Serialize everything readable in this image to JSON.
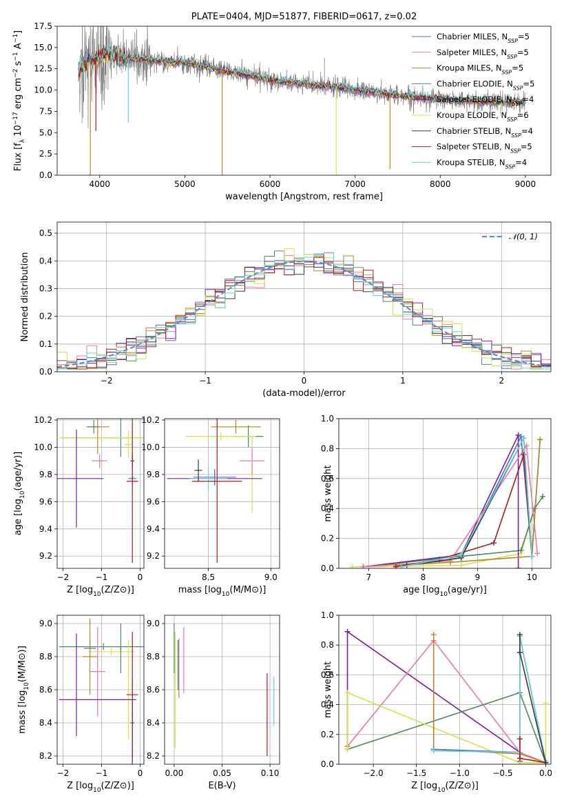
{
  "colors": {
    "chabrier_miles": "#4f6fd1",
    "salpeter_miles": "#e87aa6",
    "kroupa_miles": "#b8862a",
    "chabrier_elodie": "#4e8a5a",
    "salpeter_elodie": "#7a1fa0",
    "kroupa_elodie": "#d2e34a",
    "chabrier_stelib": "#3a3a3a",
    "salpeter_stelib": "#b01818",
    "kroupa_stelib": "#6ad0d4",
    "data": "#808080",
    "normal": "#5b8bd6"
  },
  "chart_data": [
    {
      "type": "line",
      "title": "PLATE=0404, MJD=51877, FIBERID=0617, z=0.02",
      "xlabel": "wavelength [Angstrom, rest frame]",
      "ylabel": "Flux [f_λ 10^-17 erg cm^-2 s^-1 A^-1]",
      "xlim": [
        3500,
        9300
      ],
      "ylim": [
        0,
        17.5
      ],
      "xticks": [
        "4000",
        "5000",
        "6000",
        "7000",
        "8000",
        "9000"
      ],
      "yticks": [
        "0.0",
        "2.5",
        "5.0",
        "7.5",
        "10.0",
        "12.5",
        "15.0",
        "17.5"
      ],
      "legend_position": "top-right",
      "legend": [
        {
          "label": "Chabrier MILES, N",
          "sub": "SSP",
          "suffix": "=5",
          "color": "chabrier_miles"
        },
        {
          "label": "Salpeter MILES, N",
          "sub": "SSP",
          "suffix": "=5",
          "color": "salpeter_miles"
        },
        {
          "label": "Kroupa MILES, N",
          "sub": "SSP",
          "suffix": "=5",
          "color": "kroupa_miles"
        },
        {
          "label": "Chabrier ELODIE, N",
          "sub": "SSP",
          "suffix": "=5",
          "color": "chabrier_elodie"
        },
        {
          "label": "Salpeter ELODIE, N",
          "sub": "SSP",
          "suffix": "=4",
          "color": "salpeter_elodie"
        },
        {
          "label": "Kroupa ELODIE, N",
          "sub": "SSP",
          "suffix": "=6",
          "color": "kroupa_elodie"
        },
        {
          "label": "Chabrier STELIB, N",
          "sub": "SSP",
          "suffix": "=4",
          "color": "chabrier_stelib"
        },
        {
          "label": "Salpeter STELIB, N",
          "sub": "SSP",
          "suffix": "=5",
          "color": "salpeter_stelib"
        },
        {
          "label": "Kroupa STELIB, N",
          "sub": "SSP",
          "suffix": "=4",
          "color": "kroupa_stelib"
        }
      ],
      "model_shape": {
        "x": [
          3700,
          3800,
          3900,
          4000,
          4100,
          4200,
          4300,
          4400,
          4600,
          4800,
          5000,
          5200,
          5400,
          5600,
          5800,
          6000,
          6200,
          6400,
          6600,
          6800,
          7000,
          7200,
          7400,
          7600,
          7800,
          8000,
          8200,
          8400,
          8600,
          8800,
          9000
        ],
        "y": [
          11.0,
          13.0,
          13.5,
          14.0,
          14.2,
          14.0,
          13.7,
          13.6,
          13.5,
          13.3,
          13.2,
          12.8,
          12.4,
          12.0,
          11.6,
          11.2,
          10.9,
          10.7,
          10.5,
          10.3,
          10.0,
          9.8,
          9.5,
          9.3,
          9.1,
          8.9,
          8.8,
          8.7,
          8.6,
          8.6,
          8.6
        ]
      },
      "spikes": [
        {
          "x": 3890,
          "y": 0,
          "color": "kroupa_miles"
        },
        {
          "x": 3955,
          "y": 5.2,
          "color": "salpeter_stelib"
        },
        {
          "x": 4335,
          "y": 6.2,
          "color": "kroupa_stelib"
        },
        {
          "x": 5438,
          "y": 0,
          "color": "kroupa_miles"
        },
        {
          "x": 6778,
          "y": 0,
          "color": "kroupa_elodie"
        },
        {
          "x": 7410,
          "y": 0.7,
          "color": "kroupa_miles"
        }
      ]
    },
    {
      "type": "histogram",
      "xlabel": "(data-model)/error",
      "ylabel": "Normed distribution",
      "xlim": [
        -2.5,
        2.5
      ],
      "ylim": [
        0,
        0.54
      ],
      "xticks": [
        "−2",
        "−1",
        "0",
        "1",
        "2"
      ],
      "yticks": [
        "0.0",
        "0.1",
        "0.2",
        "0.3",
        "0.4",
        "0.5"
      ],
      "legend": [
        {
          "label": "𝒩(0, 1)",
          "color": "normal",
          "style": "dashed"
        }
      ],
      "legend_position": "top-right"
    },
    {
      "type": "errorbar",
      "xlabel": "Z [log10(Z/Z⊙)]",
      "ylabel": "age [log10(age/yr)]",
      "xlim": [
        -2.15,
        0.1
      ],
      "ylim": [
        9.11,
        10.21
      ],
      "xticks": [
        "−2",
        "−1",
        "0"
      ],
      "yticks": [
        "9.2",
        "9.4",
        "9.6",
        "9.8",
        "10.0",
        "10.2"
      ],
      "points": [
        {
          "x": -1.1,
          "xerr": 0.3,
          "y": 10.15,
          "yerr": 0.2,
          "color": "kroupa_miles"
        },
        {
          "x": -1.2,
          "xerr": 0.15,
          "y": 10.15,
          "yerr": 0.05,
          "color": "chabrier_elodie"
        },
        {
          "x": -0.5,
          "xerr": 1.55,
          "y": 10.07,
          "yerr": 0.14,
          "color": "chabrier_elodie"
        },
        {
          "x": -1.0,
          "xerr": 1.1,
          "y": 10.07,
          "yerr": 0.02,
          "color": "kroupa_elodie"
        },
        {
          "x": -0.3,
          "xerr": 0.1,
          "y": 10.02,
          "yerr": 0.1,
          "color": "kroupa_elodie"
        },
        {
          "x": -1.05,
          "xerr": 0.2,
          "y": 9.9,
          "yerr": 0.05,
          "color": "salpeter_miles"
        },
        {
          "x": -1.65,
          "xerr": 0.7,
          "y": 9.77,
          "yerr": 0.36,
          "color": "salpeter_elodie"
        },
        {
          "x": -0.2,
          "xerr": 0.1,
          "y": 9.77,
          "yerr": 0.05,
          "color": "chabrier_miles"
        },
        {
          "x": -0.2,
          "xerr": 0.05,
          "y": 9.78,
          "yerr": 0.05,
          "color": "kroupa_stelib"
        },
        {
          "x": -0.2,
          "xerr": 0.05,
          "y": 9.9,
          "yerr": 0.05,
          "color": "chabrier_stelib"
        },
        {
          "x": -0.2,
          "xerr": 0.15,
          "y": 9.75,
          "yerr": 0.6,
          "color": "salpeter_stelib"
        }
      ]
    },
    {
      "type": "errorbar",
      "xlabel": "mass [log10(M/M⊙)]",
      "ylabel": "",
      "xlim": [
        8.15,
        9.07
      ],
      "ylim": [
        9.11,
        10.21
      ],
      "xticks": [
        "8.5",
        "9.0"
      ],
      "yticks": [
        "9.2",
        "9.4",
        "9.6",
        "9.8",
        "10.0",
        "10.2"
      ],
      "points": [
        {
          "x": 8.72,
          "xerr": 0.2,
          "y": 10.15,
          "yerr": 0.05,
          "color": "kroupa_miles"
        },
        {
          "x": 8.82,
          "xerr": 0.12,
          "y": 10.08,
          "yerr": 0.08,
          "color": "chabrier_elodie"
        },
        {
          "x": 8.6,
          "xerr": 0.28,
          "y": 10.08,
          "yerr": 0.03,
          "color": "kroupa_elodie"
        },
        {
          "x": 8.85,
          "xerr": 0.03,
          "y": 9.8,
          "yerr": 0.28,
          "color": "kroupa_elodie"
        },
        {
          "x": 8.85,
          "xerr": 0.1,
          "y": 9.9,
          "yerr": 0.1,
          "color": "salpeter_miles"
        },
        {
          "x": 8.55,
          "xerr": 0.38,
          "y": 9.77,
          "yerr": 0.05,
          "color": "salpeter_elodie"
        },
        {
          "x": 8.55,
          "xerr": 0.17,
          "y": 9.78,
          "yerr": 0.06,
          "color": "chabrier_miles"
        },
        {
          "x": 8.5,
          "xerr": 0.15,
          "y": 9.77,
          "yerr": 0.09,
          "color": "kroupa_stelib"
        },
        {
          "x": 8.42,
          "xerr": 0.03,
          "y": 9.83,
          "yerr": 0.08,
          "color": "chabrier_stelib"
        },
        {
          "x": 8.57,
          "xerr": 0.2,
          "y": 9.75,
          "yerr": 0.6,
          "color": "salpeter_stelib"
        }
      ]
    },
    {
      "type": "line",
      "xlabel": "age [log10(age/yr)]",
      "ylabel": "mass weight",
      "xlim": [
        6.45,
        10.35
      ],
      "ylim": [
        0,
        1.0
      ],
      "xticks": [
        "7",
        "8",
        "9",
        "10"
      ],
      "yticks": [
        "0.0",
        "0.2",
        "0.4",
        "0.6",
        "0.8",
        "1.0"
      ],
      "series": [
        {
          "color": "kroupa_elodie",
          "x": [
            6.7,
            8.7,
            9.8,
            10.05,
            10.2
          ],
          "y": [
            0.01,
            0.02,
            0.1,
            0.4,
            0.48
          ]
        },
        {
          "color": "chabrier_elodie",
          "x": [
            6.9,
            8.7,
            9.8,
            10.05,
            10.2
          ],
          "y": [
            0.01,
            0.08,
            0.12,
            0.4,
            0.48
          ]
        },
        {
          "color": "salpeter_elodie",
          "x": [
            6.9,
            8.7,
            9.75,
            9.75
          ],
          "y": [
            0.01,
            0.09,
            0.89,
            0.0
          ]
        },
        {
          "color": "salpeter_miles",
          "x": [
            6.9,
            8.5,
            9.9,
            10.1
          ],
          "y": [
            0.01,
            0.05,
            0.82,
            0.1
          ]
        },
        {
          "color": "chabrier_miles",
          "x": [
            7.5,
            8.7,
            9.8,
            10.0,
            10.15
          ],
          "y": [
            0.01,
            0.07,
            0.88,
            0.08,
            0.86
          ]
        },
        {
          "color": "kroupa_miles",
          "x": [
            7.5,
            8.5,
            10.0,
            10.15
          ],
          "y": [
            0.02,
            0.04,
            0.08,
            0.86
          ]
        },
        {
          "color": "salpeter_stelib",
          "x": [
            7.5,
            8.3,
            9.3,
            9.85,
            10.0
          ],
          "y": [
            0.01,
            0.06,
            0.17,
            0.76,
            0.08
          ]
        },
        {
          "color": "chabrier_stelib",
          "x": [
            7.7,
            8.7,
            9.85,
            10.0
          ],
          "y": [
            0.02,
            0.07,
            0.87,
            0.08
          ]
        },
        {
          "color": "kroupa_stelib",
          "x": [
            7.6,
            8.7,
            9.85,
            10.0
          ],
          "y": [
            0.01,
            0.09,
            0.87,
            0.08
          ]
        }
      ]
    },
    {
      "type": "errorbar",
      "xlabel": "Z [log10(Z/Z⊙)]",
      "ylabel": "mass [log10(M/M⊙)]",
      "xlim": [
        -2.15,
        0.1
      ],
      "ylim": [
        8.15,
        9.05
      ],
      "xticks": [
        "−2",
        "−1",
        "0"
      ],
      "yticks": [
        "8.2",
        "8.4",
        "8.6",
        "8.8",
        "9.0"
      ],
      "points": [
        {
          "x": -0.95,
          "xerr": 1.15,
          "y": 8.86,
          "yerr": 0.02,
          "color": "chabrier_elodie"
        },
        {
          "x": -1.3,
          "xerr": 0.15,
          "y": 8.85,
          "yerr": 0.05,
          "color": "chabrier_miles"
        },
        {
          "x": -0.75,
          "xerr": 0.6,
          "y": 8.83,
          "yerr": 0.02,
          "color": "kroupa_elodie"
        },
        {
          "x": -1.3,
          "xerr": 0.2,
          "y": 8.8,
          "yerr": 0.23,
          "color": "kroupa_miles"
        },
        {
          "x": -1.1,
          "xerr": 0.2,
          "y": 8.71,
          "yerr": 0.27,
          "color": "salpeter_miles"
        },
        {
          "x": -0.5,
          "xerr": 0.02,
          "y": 8.85,
          "yerr": 0.15,
          "color": "chabrier_elodie"
        },
        {
          "x": -0.3,
          "xerr": 0.02,
          "y": 8.6,
          "yerr": 0.3,
          "color": "kroupa_elodie"
        },
        {
          "x": -0.2,
          "xerr": 0.05,
          "y": 8.4,
          "yerr": 0.25,
          "color": "chabrier_stelib"
        },
        {
          "x": -0.2,
          "xerr": 0.02,
          "y": 8.45,
          "yerr": 0.22,
          "color": "kroupa_stelib"
        },
        {
          "x": -0.2,
          "xerr": 0.15,
          "y": 8.57,
          "yerr": 0.38,
          "color": "salpeter_stelib"
        },
        {
          "x": -1.1,
          "xerr": 1.0,
          "y": 8.54,
          "yerr": 0.0,
          "color": "salpeter_elodie"
        },
        {
          "x": -1.65,
          "xerr": 0.0,
          "y": 8.63,
          "yerr": 0.31,
          "color": "salpeter_elodie"
        }
      ]
    },
    {
      "type": "errorbar",
      "xlabel": "E(B-V)",
      "ylabel": "",
      "xlim": [
        -0.01,
        0.11
      ],
      "ylim": [
        8.15,
        9.05
      ],
      "xticks": [
        "0.00",
        "0.05",
        "0.10"
      ],
      "yticks": [
        "8.2",
        "8.4",
        "8.6",
        "8.8",
        "9.0"
      ],
      "points": [
        {
          "x": 0.0,
          "xerr": 0.0,
          "y": 8.85,
          "yerr": 0.15,
          "color": "chabrier_elodie"
        },
        {
          "x": 0.001,
          "xerr": 0.0,
          "y": 8.6,
          "yerr": 0.35,
          "color": "kroupa_elodie"
        },
        {
          "x": 0.004,
          "xerr": 0.0,
          "y": 8.75,
          "yerr": 0.15,
          "color": "chabrier_miles"
        },
        {
          "x": 0.005,
          "xerr": 0.0,
          "y": 8.73,
          "yerr": 0.18,
          "color": "kroupa_miles"
        },
        {
          "x": 0.01,
          "xerr": 0.0,
          "y": 8.78,
          "yerr": 0.2,
          "color": "salpeter_miles"
        },
        {
          "x": 0.097,
          "xerr": 0.0,
          "y": 8.45,
          "yerr": 0.25,
          "color": "salpeter_stelib"
        },
        {
          "x": 0.104,
          "xerr": 0.0,
          "y": 8.53,
          "yerr": 0.15,
          "color": "kroupa_stelib"
        }
      ]
    },
    {
      "type": "line",
      "xlabel": "Z [log10(Z/Z⊙)]",
      "ylabel": "mass weight",
      "xlim": [
        -2.4,
        0.06
      ],
      "ylim": [
        0,
        1.0
      ],
      "xticks": [
        "−2.0",
        "−1.5",
        "−1.0",
        "−0.5",
        "0.0"
      ],
      "yticks": [
        "0.0",
        "0.2",
        "0.4",
        "0.6",
        "0.8",
        "1.0"
      ],
      "series": [
        {
          "color": "salpeter_elodie",
          "x": [
            -2.3,
            -2.3,
            -0.3,
            -0.3
          ],
          "y": [
            0.12,
            0.89,
            0.08,
            0.02
          ]
        },
        {
          "color": "salpeter_miles",
          "x": [
            -2.3,
            -1.3,
            -0.3,
            0.0
          ],
          "y": [
            0.12,
            0.83,
            0.08,
            0.01
          ]
        },
        {
          "color": "chabrier_elodie",
          "x": [
            -2.3,
            -0.3,
            0.0
          ],
          "y": [
            0.1,
            0.48,
            0.01
          ]
        },
        {
          "color": "kroupa_elodie",
          "x": [
            -2.3,
            -2.3,
            -0.3,
            0.0,
            0.0
          ],
          "y": [
            0.1,
            0.48,
            0.01,
            0.01,
            0.41
          ]
        },
        {
          "color": "kroupa_miles",
          "x": [
            -1.3,
            -1.3,
            -0.3,
            0.0
          ],
          "y": [
            0.87,
            0.1,
            0.07,
            0.01
          ]
        },
        {
          "color": "chabrier_miles",
          "x": [
            -1.3,
            -0.3,
            -0.3,
            0.0
          ],
          "y": [
            0.1,
            0.08,
            0.86,
            0.01
          ]
        },
        {
          "color": "kroupa_stelib",
          "x": [
            -1.3,
            -0.3,
            -0.3,
            0.0
          ],
          "y": [
            0.09,
            0.08,
            0.86,
            0.02
          ]
        },
        {
          "color": "salpeter_stelib",
          "x": [
            -0.3,
            -0.3,
            0.0
          ],
          "y": [
            0.17,
            0.04,
            0.01
          ]
        },
        {
          "color": "chabrier_stelib",
          "x": [
            -0.3,
            -0.3,
            0.0
          ],
          "y": [
            0.87,
            0.75,
            0.01
          ]
        }
      ]
    }
  ]
}
